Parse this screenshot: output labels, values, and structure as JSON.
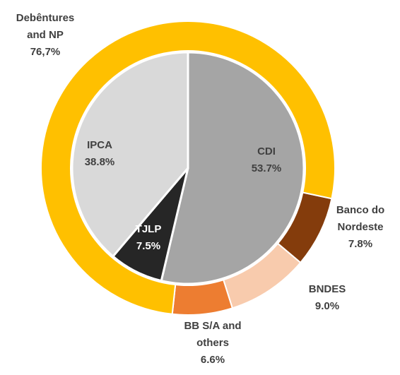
{
  "chart_data": {
    "type": "pie",
    "title": "",
    "outer_ring": [
      {
        "name": "Debêntures and NP",
        "value": 76.7,
        "value_label": "76,7%",
        "color": "#FFC000"
      },
      {
        "name": "Banco do Nordeste",
        "value": 7.8,
        "value_label": "7.8%",
        "color": "#843C0C"
      },
      {
        "name": "BNDES",
        "value": 9.0,
        "value_label": "9.0%",
        "color": "#F8CBAD"
      },
      {
        "name": "BB S/A and others",
        "value": 6.6,
        "value_label": "6.6%",
        "color": "#ED7D31"
      }
    ],
    "inner_pie": [
      {
        "name": "CDI",
        "value": 53.7,
        "value_label": "53.7%",
        "color": "#A5A5A5"
      },
      {
        "name": "TJLP",
        "value": 7.5,
        "value_label": "7.5%",
        "color": "#262626"
      },
      {
        "name": "IPCA",
        "value": 38.8,
        "value_label": "38.8%",
        "color": "#D9D9D9"
      }
    ]
  },
  "labels": {
    "debentures": {
      "line1": "Debêntures",
      "line2": "and NP",
      "value": "76,7%"
    },
    "banco": {
      "line1": "Banco do",
      "line2": "Nordeste",
      "value": "7.8%"
    },
    "bndes": {
      "line1": "BNDES",
      "value": "9.0%"
    },
    "bb": {
      "line1": "BB S/A and",
      "line2": "others",
      "value": "6.6%"
    },
    "cdi": {
      "line1": "CDI",
      "value": "53.7%"
    },
    "tjlp": {
      "line1": "TJLP",
      "value": "7.5%"
    },
    "ipca": {
      "line1": "IPCA",
      "value": "38.8%"
    }
  }
}
